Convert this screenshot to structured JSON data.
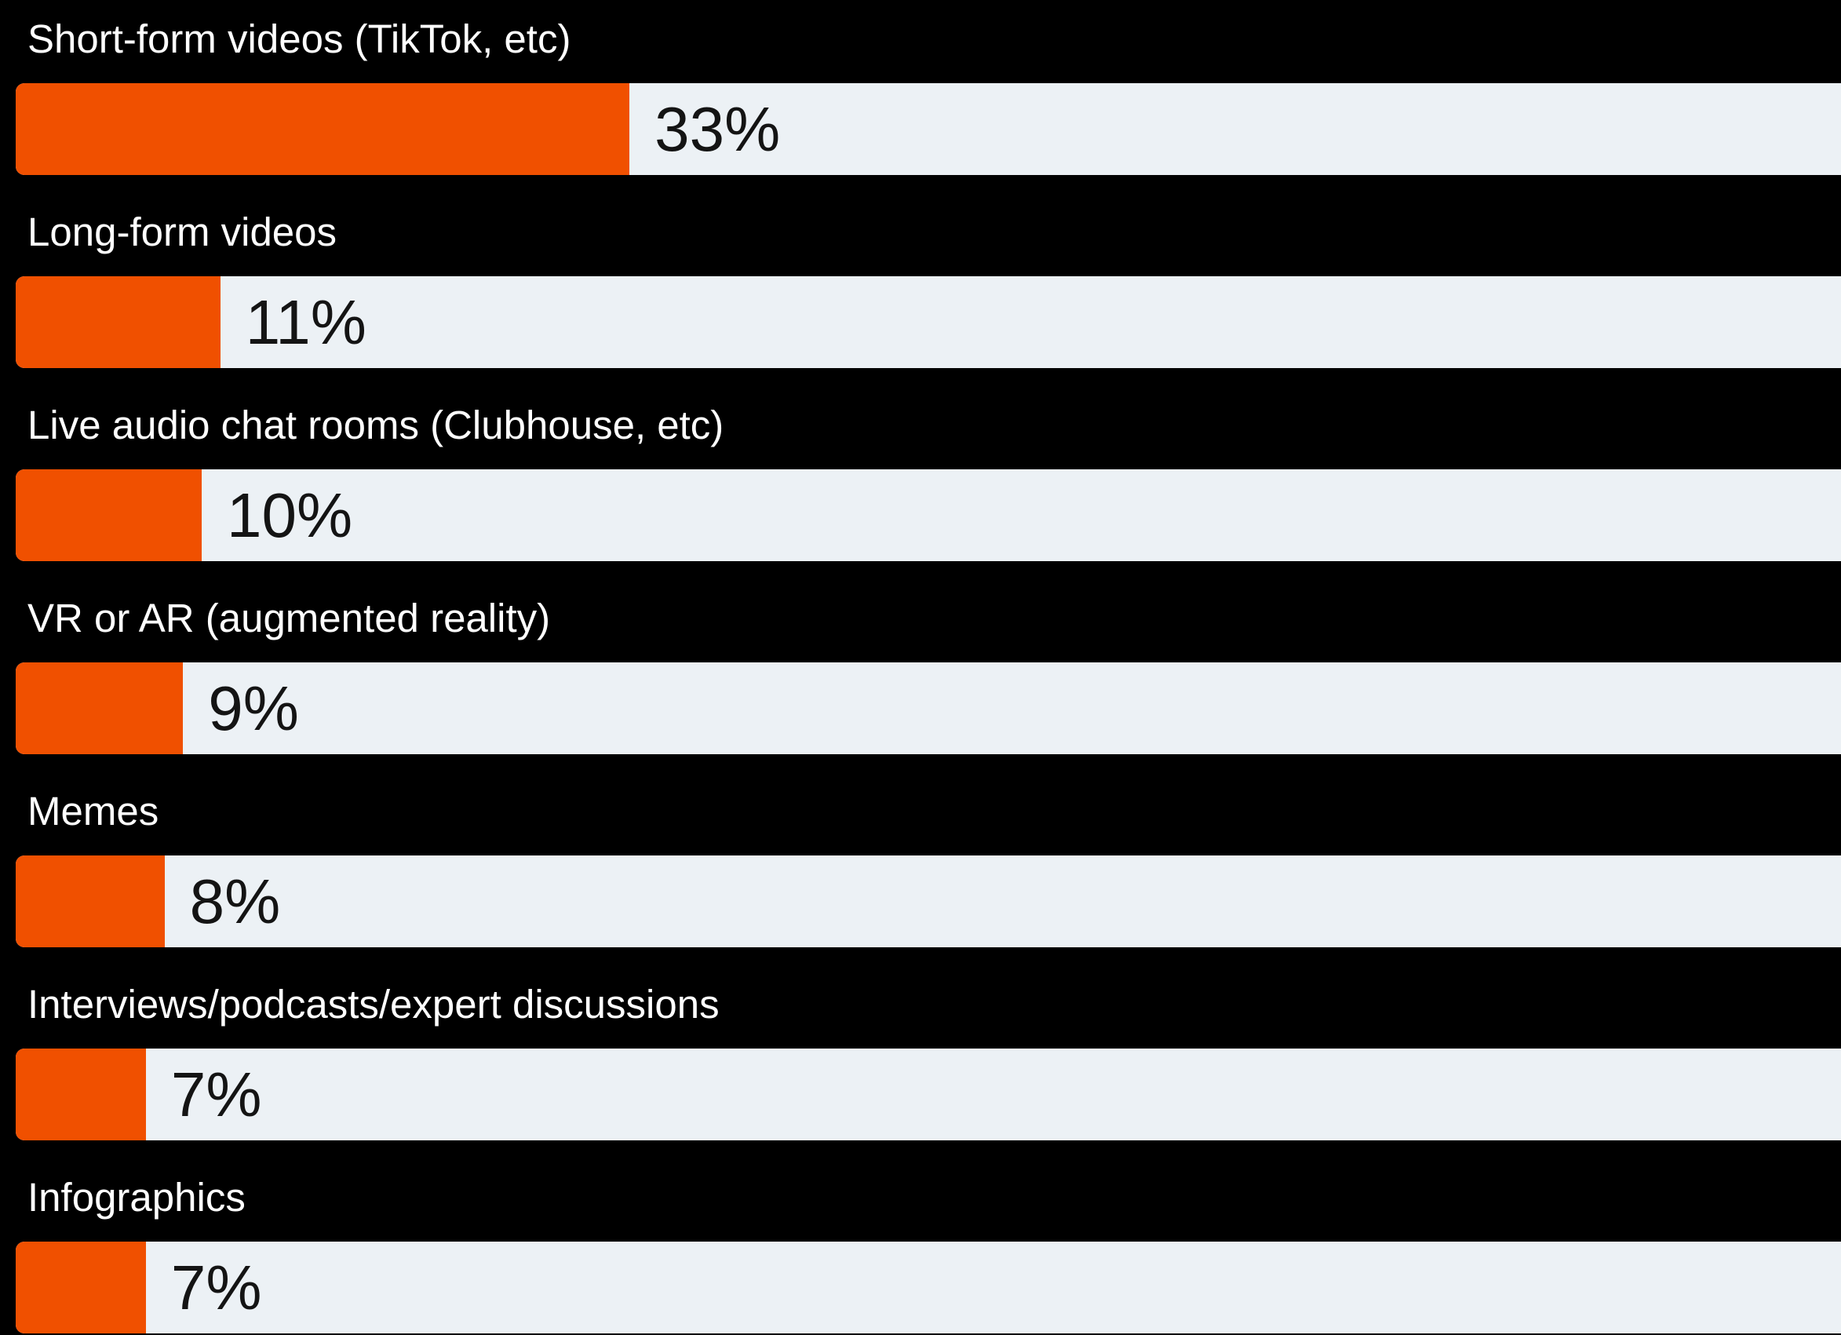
{
  "chart_data": {
    "type": "bar",
    "orientation": "horizontal",
    "categories": [
      "Short-form videos (TikTok, etc)",
      "Long-form videos",
      "Live audio chat rooms (Clubhouse, etc)",
      "VR or AR (augmented reality)",
      "Memes",
      "Interviews/podcasts/expert discussions",
      "Infographics"
    ],
    "values": [
      33,
      11,
      10,
      9,
      8,
      7,
      7
    ],
    "value_labels": [
      "33%",
      "11%",
      "10%",
      "9%",
      "8%",
      "7%",
      "7%"
    ],
    "unit": "%",
    "title": "",
    "xlabel": "",
    "ylabel": "",
    "xlim": [
      0,
      100
    ],
    "grid": false,
    "legend": "none"
  },
  "colors": {
    "background": "#000000",
    "bar_fill": "#F05000",
    "bar_track": "#ECF1F5",
    "label_text": "#FFFFFF",
    "value_text": "#141414"
  }
}
